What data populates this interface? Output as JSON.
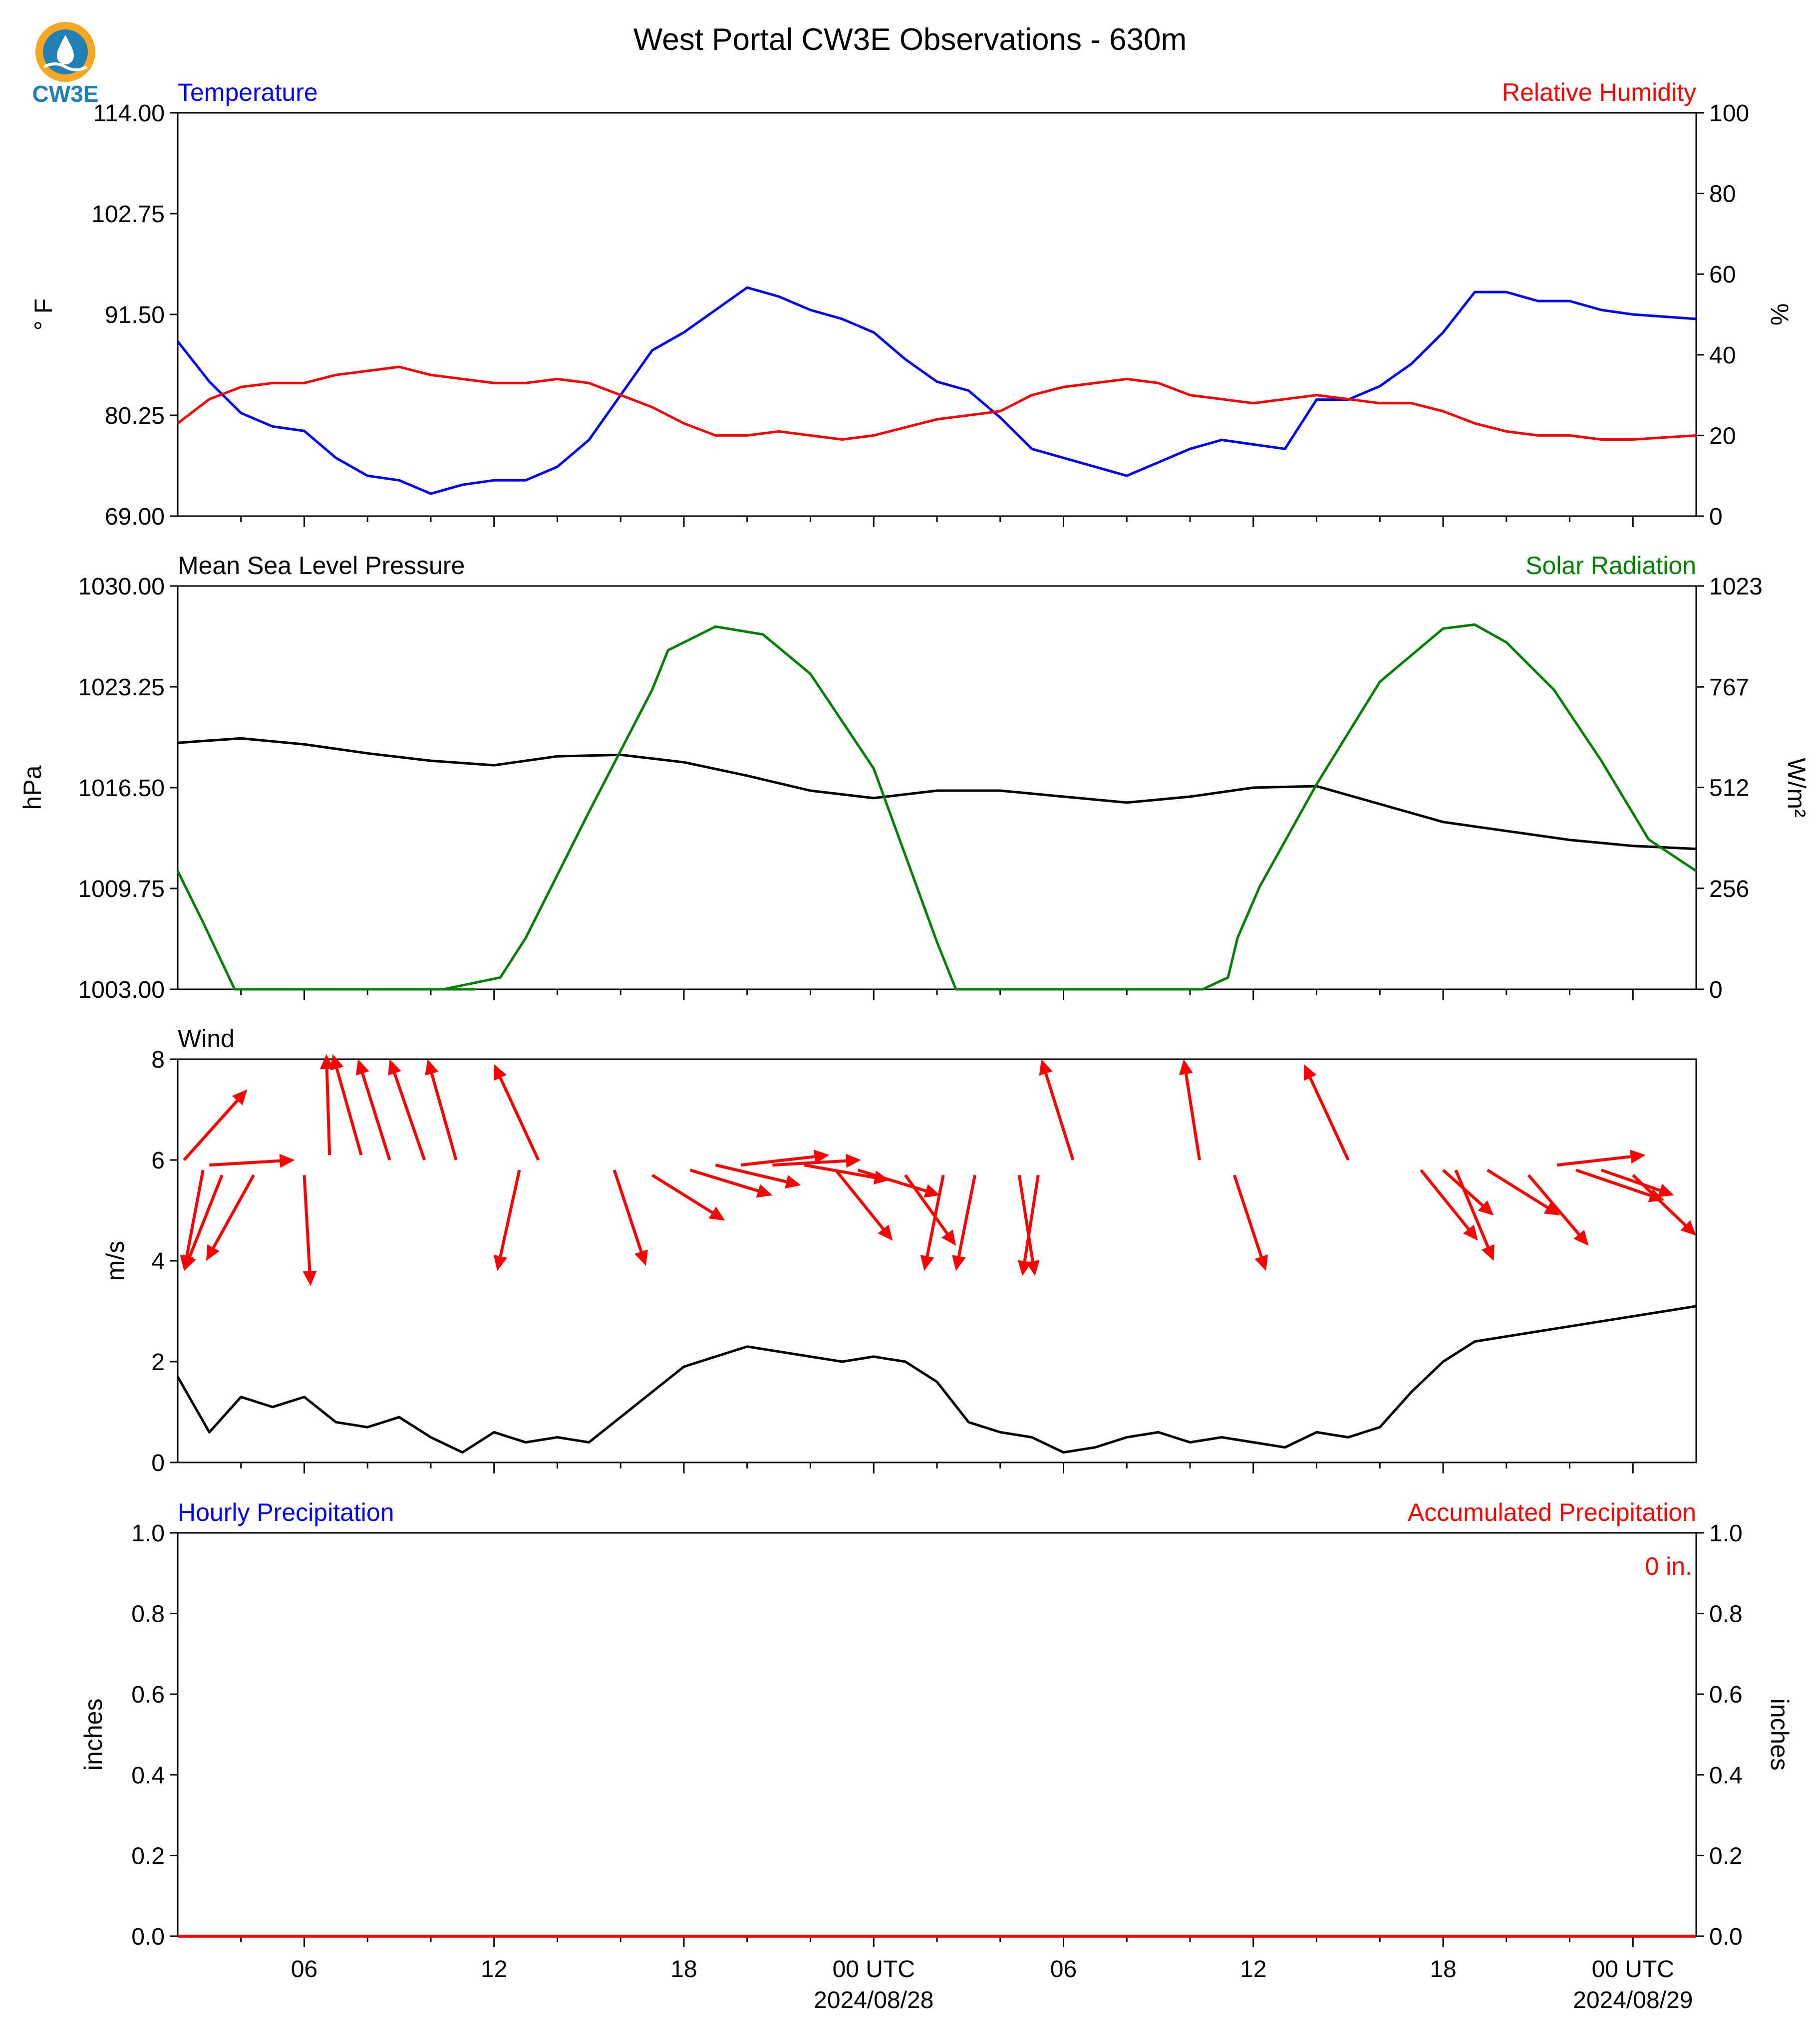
{
  "figure_title": "West Portal CW3E Observations - 630m",
  "logo_text": "CW3E",
  "colors": {
    "temperature": "#0000ff",
    "humidity": "#ff0000",
    "pressure": "#000000",
    "solar": "#008000",
    "wind_arrows": "#ff0000",
    "wind_speed": "#000000",
    "precip_hourly": "#0000ff",
    "precip_accum": "#ff0000",
    "logo_orange": "#f5a623",
    "logo_blue": "#1f7fb6"
  },
  "time_axis": {
    "range_hours": [
      -22,
      26
    ],
    "tick_hours": [
      -18,
      -12,
      -6,
      0,
      6,
      12,
      18,
      24
    ],
    "tick_labels": [
      "06",
      "12",
      "18",
      "00 UTC",
      "06",
      "12",
      "18",
      "00 UTC"
    ],
    "date_labels": [
      {
        "hour": 0,
        "text": "2024/08/28"
      },
      {
        "hour": 24,
        "text": "2024/08/29"
      }
    ]
  },
  "chart_data": [
    {
      "type": "line",
      "left_title": "Temperature",
      "right_title": "Relative Humidity",
      "ylabel_left": "° F",
      "ylabel_right": "%",
      "ylim_left": [
        69.0,
        114.0
      ],
      "ylim_right": [
        0,
        100
      ],
      "yticks_left": [
        "69.00",
        "80.25",
        "91.50",
        "102.75",
        "114.00"
      ],
      "yticks_right": [
        "0",
        "20",
        "40",
        "60",
        "80",
        "100"
      ],
      "x_units": "hours from 2024-08-28 00 UTC",
      "series": [
        {
          "name": "Temperature",
          "axis": "left",
          "color_key": "temperature",
          "x": [
            -22,
            -21,
            -20,
            -19,
            -18,
            -17,
            -16,
            -15,
            -14,
            -13,
            -12,
            -11,
            -10,
            -9,
            -8,
            -7,
            -6,
            -5,
            -4,
            -3,
            -2,
            -1,
            0,
            1,
            2,
            3,
            4,
            5,
            6,
            7,
            8,
            9,
            10,
            11,
            12,
            13,
            14,
            15,
            16,
            17,
            18,
            19,
            20,
            21,
            22,
            23,
            24,
            26
          ],
          "values": [
            88.5,
            84,
            80.5,
            79,
            78.5,
            75.5,
            73.5,
            73,
            71.5,
            72.5,
            73,
            73,
            74.5,
            77.5,
            82.5,
            87.5,
            89.5,
            92,
            94.5,
            93.5,
            92,
            91,
            89.5,
            86.5,
            84,
            83,
            80,
            76.5,
            75.5,
            74.5,
            73.5,
            75,
            76.5,
            77.5,
            77,
            76.5,
            82,
            82,
            83.5,
            86,
            89.5,
            94,
            94,
            93,
            93,
            92,
            91.5,
            91
          ]
        },
        {
          "name": "Relative Humidity",
          "axis": "right",
          "color_key": "humidity",
          "x": [
            -22,
            -21,
            -20,
            -19,
            -18,
            -17,
            -16,
            -15,
            -14,
            -13,
            -12,
            -11,
            -10,
            -9,
            -8,
            -7,
            -6,
            -5,
            -4,
            -3,
            -2,
            -1,
            0,
            1,
            2,
            3,
            4,
            5,
            6,
            7,
            8,
            9,
            10,
            11,
            12,
            13,
            14,
            15,
            16,
            17,
            18,
            19,
            20,
            21,
            22,
            23,
            24,
            26
          ],
          "values": [
            23,
            29,
            32,
            33,
            33,
            35,
            36,
            37,
            35,
            34,
            33,
            33,
            34,
            33,
            30,
            27,
            23,
            20,
            20,
            21,
            20,
            19,
            20,
            22,
            24,
            25,
            26,
            30,
            32,
            33,
            34,
            33,
            30,
            29,
            28,
            29,
            30,
            29,
            28,
            28,
            26,
            23,
            21,
            20,
            20,
            19,
            19,
            20
          ]
        }
      ]
    },
    {
      "type": "line",
      "left_title": "Mean Sea Level Pressure",
      "right_title": "Solar Radiation",
      "ylabel_left": "hPa",
      "ylabel_right": "W/m²",
      "ylim_left": [
        1003.0,
        1030.0
      ],
      "ylim_right": [
        0,
        1023
      ],
      "yticks_left": [
        "1003.00",
        "1009.75",
        "1016.50",
        "1023.25",
        "1030.00"
      ],
      "yticks_right": [
        "0",
        "256",
        "512",
        "767",
        "1023"
      ],
      "x_units": "hours from 2024-08-28 00 UTC",
      "series": [
        {
          "name": "Mean Sea Level Pressure",
          "axis": "left",
          "color_key": "pressure",
          "x": [
            -22,
            -20,
            -18,
            -16,
            -14,
            -12,
            -10,
            -8,
            -6,
            -4,
            -2,
            0,
            2,
            4,
            6,
            8,
            10,
            12,
            14,
            16,
            18,
            20,
            22,
            24,
            26
          ],
          "values": [
            1019.5,
            1019.8,
            1019.4,
            1018.8,
            1018.3,
            1018.0,
            1018.6,
            1018.7,
            1018.2,
            1017.3,
            1016.3,
            1015.8,
            1016.3,
            1016.3,
            1015.9,
            1015.5,
            1015.9,
            1016.5,
            1016.6,
            1015.4,
            1014.2,
            1013.6,
            1013.0,
            1012.6,
            1012.4
          ]
        },
        {
          "name": "Solar Radiation",
          "axis": "right",
          "color_key": "solar",
          "x": [
            -22,
            -21.2,
            -20.2,
            -12.6,
            -13.6,
            -11.8,
            -11.0,
            -9.0,
            -7.0,
            -6.5,
            -5.0,
            -3.5,
            -2.0,
            0,
            2.0,
            2.6,
            10.4,
            11.2,
            11.5,
            12.2,
            14.0,
            16.0,
            18.0,
            19.0,
            20.0,
            21.5,
            23.0,
            24.5,
            26
          ],
          "values": [
            300,
            170,
            0,
            0,
            0,
            30,
            130,
            450,
            760,
            860,
            920,
            900,
            800,
            560,
            120,
            0,
            0,
            30,
            130,
            260,
            520,
            780,
            915,
            925,
            880,
            760,
            580,
            380,
            300
          ]
        }
      ]
    },
    {
      "type": "line",
      "left_title": "Wind",
      "ylabel_left": "m/s",
      "ylim_left": [
        0,
        8
      ],
      "yticks_left": [
        "0",
        "2",
        "4",
        "6",
        "8"
      ],
      "x_units": "hours from 2024-08-28 00 UTC",
      "series": [
        {
          "name": "Wind speed",
          "axis": "left",
          "color_key": "wind_speed",
          "x": [
            -22,
            -21,
            -20,
            -19,
            -18,
            -17,
            -16,
            -15,
            -14,
            -13,
            -12,
            -11,
            -10,
            -9,
            -8,
            -7,
            -6,
            -5,
            -4,
            -3,
            -2,
            -1,
            0,
            1,
            2,
            3,
            4,
            5,
            6,
            7,
            8,
            9,
            10,
            11,
            12,
            13,
            14,
            15,
            16,
            17,
            18,
            19,
            20,
            21,
            22,
            23,
            24,
            26
          ],
          "values": [
            1.7,
            0.6,
            1.3,
            1.1,
            1.3,
            0.8,
            0.7,
            0.9,
            0.5,
            0.2,
            0.6,
            0.4,
            0.5,
            0.4,
            0.9,
            1.4,
            1.9,
            2.1,
            2.3,
            2.2,
            2.1,
            2.0,
            2.1,
            2.0,
            1.6,
            0.8,
            0.6,
            0.5,
            0.2,
            0.3,
            0.5,
            0.6,
            0.4,
            0.5,
            0.4,
            0.3,
            0.6,
            0.5,
            0.7,
            1.4,
            2.0,
            2.4,
            2.5,
            2.6,
            2.7,
            2.8,
            2.9,
            3.1
          ]
        }
      ],
      "arrows": {
        "note": "wind direction arrows; x in hours, tail/head y in m/s, arrows drawn with dx in hours",
        "items": [
          {
            "x": -21.8,
            "y": 6.0,
            "dx": 2.0,
            "dy": 1.4
          },
          {
            "x": -21.2,
            "y": 5.8,
            "dx": -0.6,
            "dy": -2.0
          },
          {
            "x": -21.0,
            "y": 5.9,
            "dx": 2.7,
            "dy": 0.1
          },
          {
            "x": -20.6,
            "y": 5.7,
            "dx": -1.2,
            "dy": -1.9
          },
          {
            "x": -19.6,
            "y": 5.7,
            "dx": -1.5,
            "dy": -1.7
          },
          {
            "x": -18.0,
            "y": 5.7,
            "dx": 0.2,
            "dy": -2.2
          },
          {
            "x": -17.2,
            "y": 6.1,
            "dx": -0.1,
            "dy": 2.0
          },
          {
            "x": -16.2,
            "y": 6.1,
            "dx": -0.9,
            "dy": 2.0
          },
          {
            "x": -15.3,
            "y": 6.0,
            "dx": -1.0,
            "dy": 2.0
          },
          {
            "x": -14.2,
            "y": 6.0,
            "dx": -1.1,
            "dy": 2.0
          },
          {
            "x": -13.2,
            "y": 6.0,
            "dx": -0.9,
            "dy": 2.0
          },
          {
            "x": -11.2,
            "y": 5.8,
            "dx": -0.7,
            "dy": -2.0
          },
          {
            "x": -10.6,
            "y": 6.0,
            "dx": -1.4,
            "dy": 1.9
          },
          {
            "x": -8.2,
            "y": 5.8,
            "dx": 1.0,
            "dy": -1.9
          },
          {
            "x": -7.0,
            "y": 5.7,
            "dx": 2.3,
            "dy": -0.9
          },
          {
            "x": -5.8,
            "y": 5.8,
            "dx": 2.6,
            "dy": -0.5
          },
          {
            "x": -5.0,
            "y": 5.9,
            "dx": 2.7,
            "dy": -0.4
          },
          {
            "x": -4.2,
            "y": 5.9,
            "dx": 2.8,
            "dy": 0.2
          },
          {
            "x": -3.2,
            "y": 5.9,
            "dx": 2.8,
            "dy": 0.1
          },
          {
            "x": -2.2,
            "y": 5.9,
            "dx": 2.7,
            "dy": -0.3
          },
          {
            "x": -1.2,
            "y": 5.8,
            "dx": 1.8,
            "dy": -1.4
          },
          {
            "x": -0.5,
            "y": 5.8,
            "dx": 2.6,
            "dy": -0.5
          },
          {
            "x": 1.0,
            "y": 5.7,
            "dx": 1.6,
            "dy": -1.4
          },
          {
            "x": 2.2,
            "y": 5.7,
            "dx": -0.6,
            "dy": -1.9
          },
          {
            "x": 3.2,
            "y": 5.7,
            "dx": -0.6,
            "dy": -1.9
          },
          {
            "x": 4.6,
            "y": 5.7,
            "dx": 0.5,
            "dy": -2.0
          },
          {
            "x": 5.2,
            "y": 5.7,
            "dx": -0.5,
            "dy": -2.0
          },
          {
            "x": 6.3,
            "y": 6.0,
            "dx": -1.0,
            "dy": 2.0
          },
          {
            "x": 10.3,
            "y": 6.0,
            "dx": -0.5,
            "dy": 2.0
          },
          {
            "x": 11.4,
            "y": 5.7,
            "dx": 1.0,
            "dy": -1.9
          },
          {
            "x": 15.0,
            "y": 6.0,
            "dx": -1.4,
            "dy": 1.9
          },
          {
            "x": 17.3,
            "y": 5.8,
            "dx": 1.8,
            "dy": -1.4
          },
          {
            "x": 18.0,
            "y": 5.8,
            "dx": 1.6,
            "dy": -0.9
          },
          {
            "x": 18.4,
            "y": 5.8,
            "dx": 1.2,
            "dy": -1.8
          },
          {
            "x": 19.4,
            "y": 5.8,
            "dx": 2.3,
            "dy": -0.9
          },
          {
            "x": 20.7,
            "y": 5.7,
            "dx": 1.9,
            "dy": -1.4
          },
          {
            "x": 21.6,
            "y": 5.9,
            "dx": 2.8,
            "dy": 0.2
          },
          {
            "x": 22.2,
            "y": 5.8,
            "dx": 2.8,
            "dy": -0.6
          },
          {
            "x": 23.0,
            "y": 5.8,
            "dx": 2.3,
            "dy": -0.5
          },
          {
            "x": 24.0,
            "y": 5.7,
            "dx": 2.0,
            "dy": -1.2
          }
        ]
      }
    },
    {
      "type": "line",
      "left_title": "Hourly Precipitation",
      "right_title": "Accumulated Precipitation",
      "ylabel_left": "inches",
      "ylabel_right": "inches",
      "ylim_left": [
        0,
        1.0
      ],
      "ylim_right": [
        0,
        1.0
      ],
      "yticks_left": [
        "0.0",
        "0.2",
        "0.4",
        "0.6",
        "0.8",
        "1.0"
      ],
      "yticks_right": [
        "0.0",
        "0.2",
        "0.4",
        "0.6",
        "0.8",
        "1.0"
      ],
      "annotation": "0 in.",
      "x_units": "hours from 2024-08-28 00 UTC",
      "series": [
        {
          "name": "Hourly Precipitation",
          "axis": "left",
          "color_key": "precip_hourly",
          "x": [
            -22,
            26
          ],
          "values": [
            0,
            0
          ]
        },
        {
          "name": "Accumulated Precipitation",
          "axis": "right",
          "color_key": "precip_accum",
          "x": [
            -22,
            26
          ],
          "values": [
            0,
            0
          ]
        }
      ]
    }
  ]
}
